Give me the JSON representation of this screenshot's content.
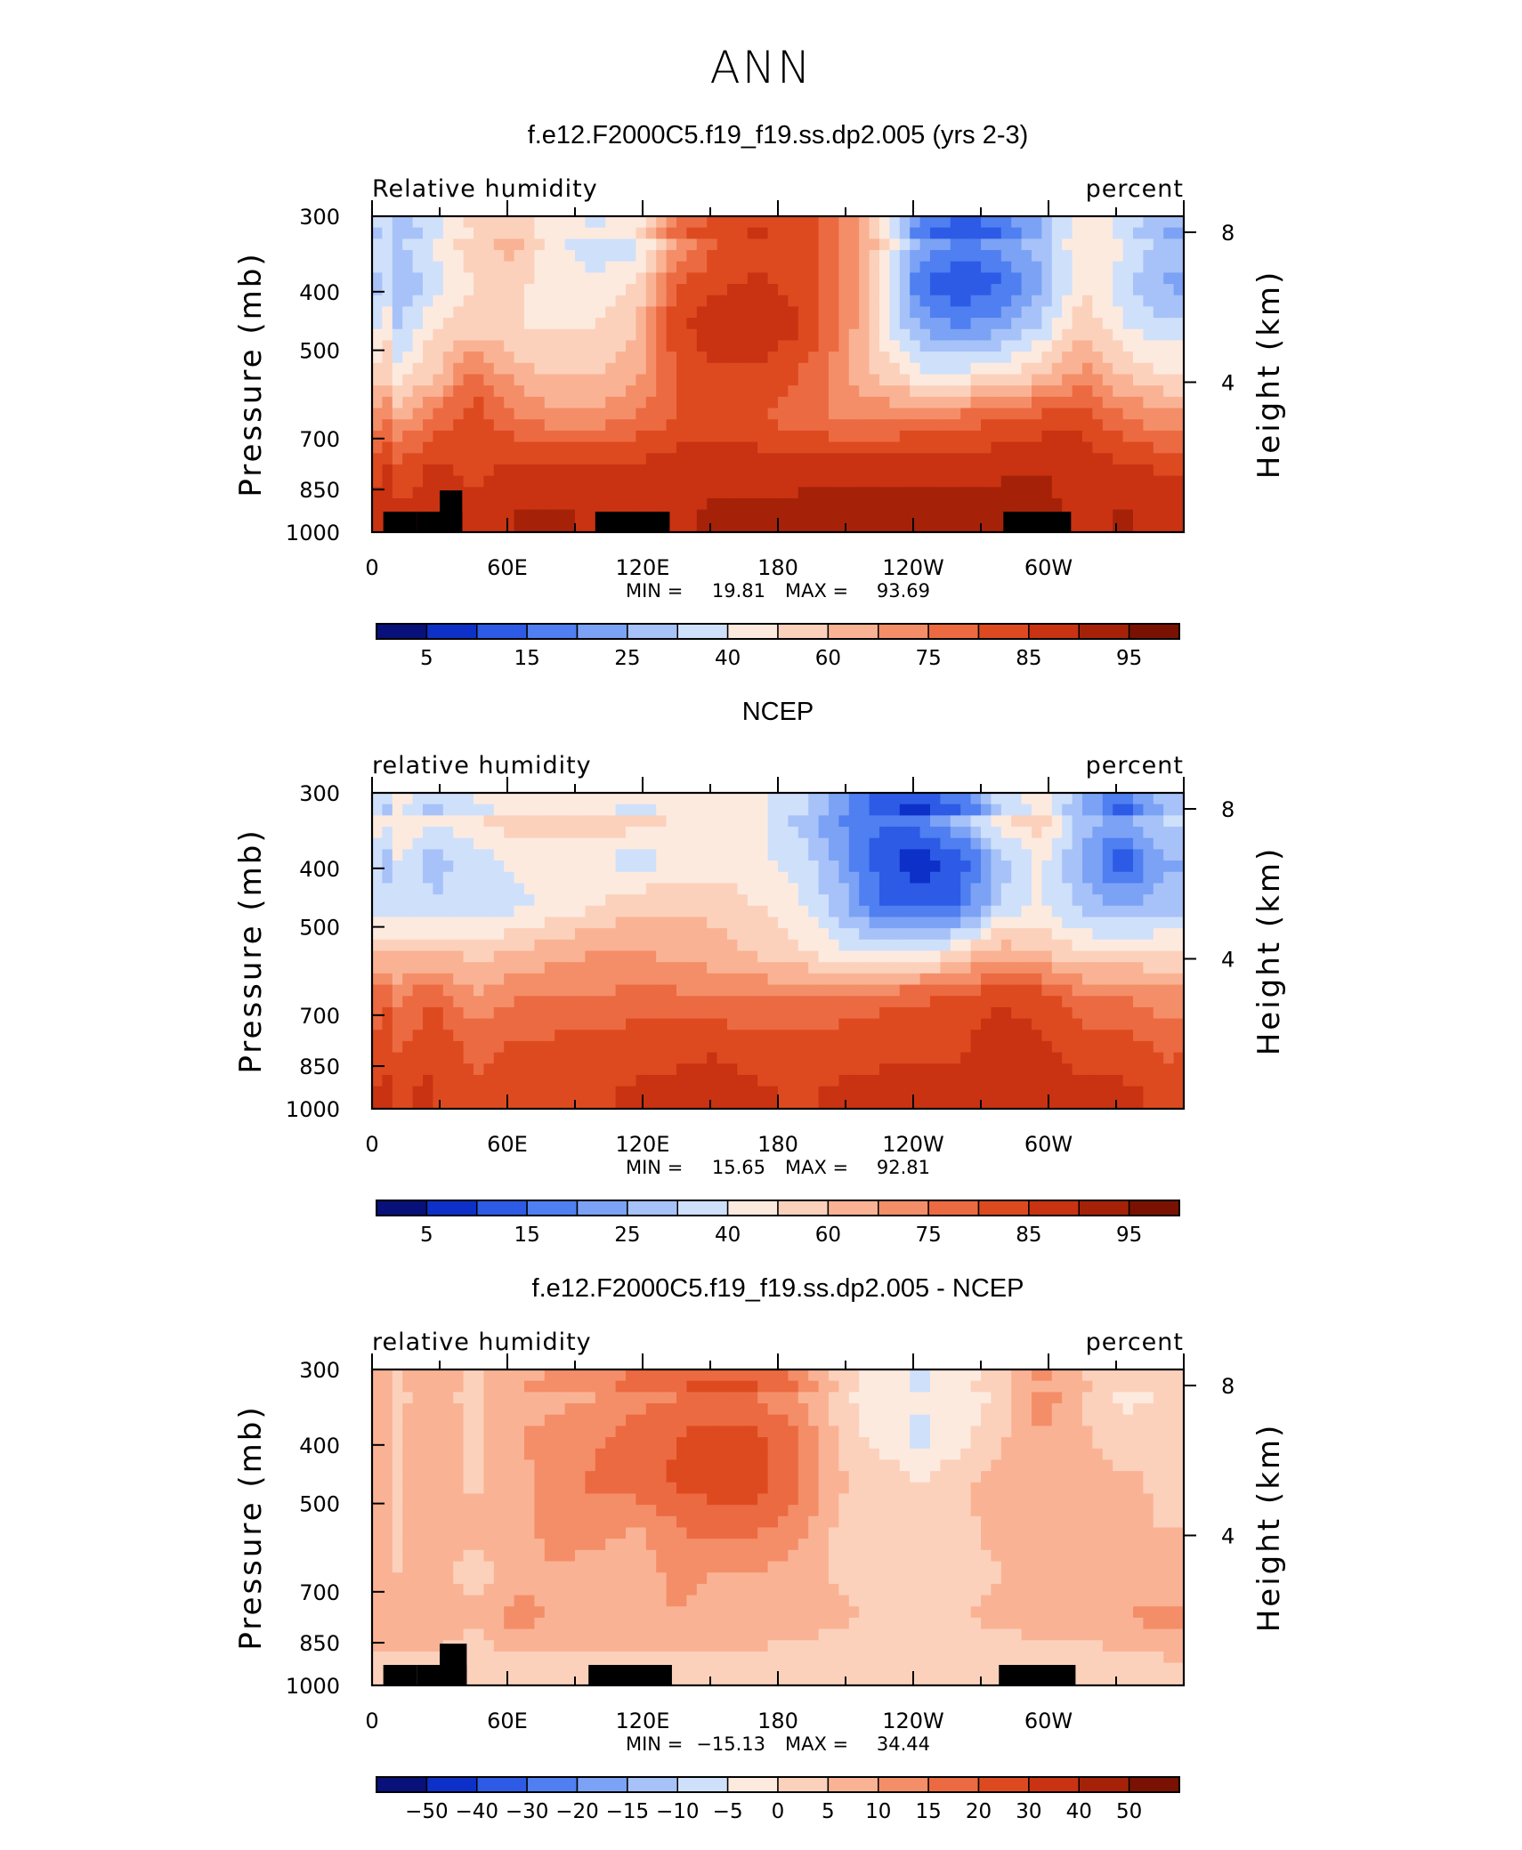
{
  "figure": {
    "main_title": "ANN"
  },
  "chart_data": [
    {
      "type": "heatmap",
      "title": "f.e12.F2000C5.f19_f19.ss.dp2.005 (yrs 2-3)",
      "left_label": "Relative humidity",
      "right_label": "percent",
      "ylabel": "Pressure (mb)",
      "ylabel_right": "Height (km)",
      "yticks": [
        "300",
        "400",
        "500",
        "700",
        "850",
        "1000"
      ],
      "yticks_right": [
        "8",
        "4"
      ],
      "xticks": [
        "0",
        "60E",
        "120E",
        "180",
        "120W",
        "60W"
      ],
      "xlim": [
        0,
        360
      ],
      "stats": {
        "min_label": "MIN =",
        "min": "19.81",
        "max_label": "MAX =",
        "max": "93.69"
      },
      "colorbar": {
        "labels": [
          "5",
          "15",
          "25",
          "40",
          "60",
          "75",
          "85",
          "95"
        ],
        "colors": [
          "#08107a",
          "#0d30c8",
          "#2d5be6",
          "#4f7ff0",
          "#7ba2f5",
          "#a7c2f8",
          "#cfe0fb",
          "#fdeadf",
          "#fcd1bc",
          "#f9b394",
          "#f48e68",
          "#ec6a41",
          "#de4a20",
          "#c93312",
          "#a52208",
          "#7a1204"
        ]
      },
      "field": [
        [
          0.35,
          0.45,
          0.55,
          0.6,
          0.45,
          0.4,
          0.4,
          0.6,
          0.75,
          0.8,
          0.78,
          0.7,
          0.55,
          0.3,
          0.25,
          0.28,
          0.35,
          0.5,
          0.45,
          0.35
        ],
        [
          0.3,
          0.4,
          0.5,
          0.52,
          0.45,
          0.45,
          0.5,
          0.75,
          0.8,
          0.82,
          0.8,
          0.7,
          0.5,
          0.2,
          0.12,
          0.18,
          0.3,
          0.5,
          0.4,
          0.3
        ],
        [
          0.35,
          0.5,
          0.55,
          0.5,
          0.5,
          0.5,
          0.55,
          0.8,
          0.85,
          0.85,
          0.82,
          0.7,
          0.5,
          0.3,
          0.25,
          0.3,
          0.4,
          0.55,
          0.45,
          0.4
        ],
        [
          0.45,
          0.55,
          0.7,
          0.6,
          0.55,
          0.55,
          0.6,
          0.75,
          0.8,
          0.8,
          0.75,
          0.65,
          0.55,
          0.45,
          0.45,
          0.5,
          0.55,
          0.65,
          0.55,
          0.5
        ],
        [
          0.6,
          0.7,
          0.8,
          0.7,
          0.65,
          0.65,
          0.7,
          0.75,
          0.78,
          0.75,
          0.72,
          0.68,
          0.68,
          0.7,
          0.72,
          0.75,
          0.78,
          0.8,
          0.7,
          0.65
        ],
        [
          0.75,
          0.82,
          0.8,
          0.82,
          0.82,
          0.82,
          0.82,
          0.85,
          0.85,
          0.85,
          0.85,
          0.85,
          0.85,
          0.85,
          0.85,
          0.86,
          0.87,
          0.85,
          0.82,
          0.8
        ],
        [
          0.82,
          0.85,
          0.82,
          0.88,
          0.88,
          0.87,
          0.85,
          0.87,
          0.88,
          0.88,
          0.89,
          0.9,
          0.9,
          0.89,
          0.89,
          0.9,
          0.9,
          0.85,
          0.88,
          0.86
        ]
      ],
      "orography": [
        {
          "lon0": 5,
          "lon1": 20,
          "p": 1000
        },
        {
          "lon0": 20,
          "lon1": 40,
          "p": 1000
        },
        {
          "lon0": 30,
          "lon1": 40,
          "p": 853
        },
        {
          "lon0": 99,
          "lon1": 132,
          "p": 1000
        },
        {
          "lon0": 280,
          "lon1": 310,
          "p": 1000
        }
      ]
    },
    {
      "type": "heatmap",
      "title": "NCEP",
      "left_label": "relative humidity",
      "right_label": "percent",
      "ylabel": "Pressure (mb)",
      "ylabel_right": "Height (km)",
      "yticks": [
        "300",
        "400",
        "500",
        "700",
        "850",
        "1000"
      ],
      "yticks_right": [
        "8",
        "4"
      ],
      "xticks": [
        "0",
        "60E",
        "120E",
        "180",
        "120W",
        "60W"
      ],
      "xlim": [
        0,
        360
      ],
      "stats": {
        "min_label": "MIN =",
        "min": "15.65",
        "max_label": "MAX =",
        "max": "92.81"
      },
      "colorbar": {
        "labels": [
          "5",
          "15",
          "25",
          "40",
          "60",
          "75",
          "85",
          "95"
        ],
        "colors": [
          "#08107a",
          "#0d30c8",
          "#2d5be6",
          "#4f7ff0",
          "#7ba2f5",
          "#a7c2f8",
          "#cfe0fb",
          "#fdeadf",
          "#fcd1bc",
          "#f9b394",
          "#f48e68",
          "#ec6a41",
          "#de4a20",
          "#c93312",
          "#a52208",
          "#7a1204"
        ]
      },
      "field": [
        [
          0.5,
          0.45,
          0.5,
          0.55,
          0.55,
          0.55,
          0.55,
          0.5,
          0.5,
          0.45,
          0.35,
          0.25,
          0.2,
          0.25,
          0.35,
          0.5,
          0.55,
          0.35,
          0.3,
          0.4
        ],
        [
          0.45,
          0.35,
          0.4,
          0.45,
          0.45,
          0.45,
          0.4,
          0.45,
          0.45,
          0.45,
          0.42,
          0.3,
          0.15,
          0.08,
          0.15,
          0.35,
          0.45,
          0.3,
          0.15,
          0.3
        ],
        [
          0.42,
          0.38,
          0.4,
          0.42,
          0.45,
          0.5,
          0.55,
          0.55,
          0.55,
          0.5,
          0.45,
          0.35,
          0.2,
          0.15,
          0.2,
          0.38,
          0.45,
          0.35,
          0.3,
          0.35
        ],
        [
          0.55,
          0.55,
          0.55,
          0.55,
          0.6,
          0.62,
          0.62,
          0.6,
          0.58,
          0.55,
          0.5,
          0.45,
          0.4,
          0.42,
          0.5,
          0.6,
          0.55,
          0.5,
          0.5,
          0.5
        ],
        [
          0.65,
          0.75,
          0.62,
          0.68,
          0.68,
          0.68,
          0.72,
          0.7,
          0.68,
          0.68,
          0.68,
          0.7,
          0.72,
          0.74,
          0.76,
          0.8,
          0.78,
          0.7,
          0.68,
          0.65
        ],
        [
          0.72,
          0.8,
          0.72,
          0.75,
          0.76,
          0.76,
          0.78,
          0.8,
          0.8,
          0.76,
          0.76,
          0.78,
          0.8,
          0.8,
          0.8,
          0.86,
          0.82,
          0.78,
          0.78,
          0.72
        ],
        [
          0.8,
          0.82,
          0.76,
          0.78,
          0.8,
          0.8,
          0.82,
          0.82,
          0.84,
          0.82,
          0.8,
          0.82,
          0.82,
          0.82,
          0.82,
          0.86,
          0.84,
          0.82,
          0.82,
          0.8
        ]
      ],
      "orography": []
    },
    {
      "type": "heatmap",
      "title": "f.e12.F2000C5.f19_f19.ss.dp2.005 - NCEP",
      "left_label": "relative humidity",
      "right_label": "percent",
      "ylabel": "Pressure (mb)",
      "ylabel_right": "Height (km)",
      "yticks": [
        "300",
        "400",
        "500",
        "700",
        "850",
        "1000"
      ],
      "yticks_right": [
        "8",
        "4"
      ],
      "xticks": [
        "0",
        "60E",
        "120E",
        "180",
        "120W",
        "60W"
      ],
      "xlim": [
        0,
        360
      ],
      "stats": {
        "min_label": "MIN =",
        "min": "−15.13",
        "max_label": "MAX =",
        "max": "34.44"
      },
      "colorbar": {
        "labels": [
          "−50",
          "−40",
          "−30",
          "−20",
          "−15",
          "−10",
          "−5",
          "0",
          "5",
          "10",
          "15",
          "20",
          "30",
          "40",
          "50"
        ],
        "colors": [
          "#08107a",
          "#0d30c8",
          "#2d5be6",
          "#4f7ff0",
          "#7ba2f5",
          "#a7c2f8",
          "#cfe0fb",
          "#fdeadf",
          "#fcd1bc",
          "#f9b394",
          "#f48e68",
          "#ec6a41",
          "#de4a20",
          "#c93312",
          "#a52208",
          "#7a1204"
        ]
      },
      "field": [
        [
          0.55,
          0.58,
          0.55,
          0.6,
          0.6,
          0.62,
          0.65,
          0.68,
          0.7,
          0.68,
          0.62,
          0.52,
          0.45,
          0.45,
          0.48,
          0.5,
          0.68,
          0.55,
          0.48,
          0.5
        ],
        [
          0.55,
          0.6,
          0.55,
          0.62,
          0.65,
          0.68,
          0.72,
          0.75,
          0.78,
          0.76,
          0.7,
          0.55,
          0.47,
          0.42,
          0.48,
          0.55,
          0.62,
          0.58,
          0.52,
          0.55
        ],
        [
          0.55,
          0.6,
          0.55,
          0.6,
          0.65,
          0.7,
          0.72,
          0.76,
          0.78,
          0.78,
          0.7,
          0.57,
          0.55,
          0.5,
          0.55,
          0.6,
          0.62,
          0.6,
          0.58,
          0.55
        ],
        [
          0.55,
          0.6,
          0.58,
          0.6,
          0.65,
          0.65,
          0.62,
          0.68,
          0.72,
          0.7,
          0.65,
          0.55,
          0.52,
          0.5,
          0.55,
          0.58,
          0.6,
          0.62,
          0.58,
          0.56
        ],
        [
          0.55,
          0.6,
          0.52,
          0.6,
          0.62,
          0.6,
          0.58,
          0.65,
          0.62,
          0.62,
          0.6,
          0.55,
          0.55,
          0.55,
          0.55,
          0.56,
          0.6,
          0.6,
          0.6,
          0.58
        ],
        [
          0.62,
          0.62,
          0.58,
          0.65,
          0.62,
          0.6,
          0.6,
          0.62,
          0.6,
          0.6,
          0.6,
          0.58,
          0.55,
          0.55,
          0.56,
          0.58,
          0.6,
          0.6,
          0.62,
          0.65
        ],
        [
          0.55,
          0.55,
          0.5,
          0.55,
          0.55,
          0.55,
          0.55,
          0.55,
          0.55,
          0.55,
          0.52,
          0.5,
          0.5,
          0.5,
          0.5,
          0.5,
          0.52,
          0.52,
          0.54,
          0.55
        ]
      ],
      "orography": [
        {
          "lon0": 5,
          "lon1": 20,
          "p": 1000
        },
        {
          "lon0": 20,
          "lon1": 42,
          "p": 1000
        },
        {
          "lon0": 30,
          "lon1": 42,
          "p": 853
        },
        {
          "lon0": 96,
          "lon1": 133,
          "p": 1000
        },
        {
          "lon0": 278,
          "lon1": 312,
          "p": 1000
        }
      ]
    }
  ]
}
